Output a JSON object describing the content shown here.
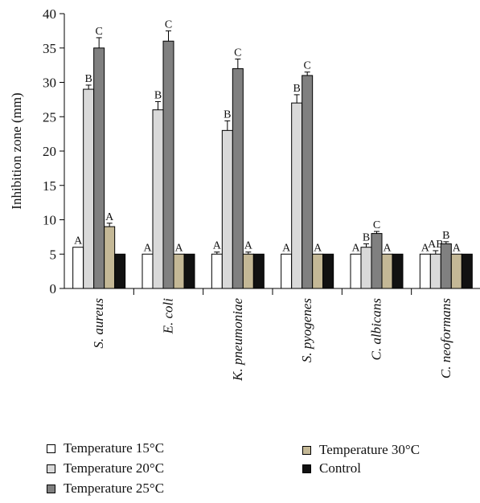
{
  "chart_data": {
    "type": "bar",
    "ylabel": "Inhibition zone (mm)",
    "xlabel": "",
    "ylim": [
      0,
      40
    ],
    "yticks": [
      0,
      5,
      10,
      15,
      20,
      25,
      30,
      35,
      40
    ],
    "categories": [
      "S. aureus",
      "E. coli",
      "K. pneumoniae",
      "S. pyogenes",
      "C. albicans",
      "C. neoformans"
    ],
    "series": [
      {
        "name": "Temperature 15°C",
        "color": "#ffffff",
        "values": [
          6,
          5,
          5,
          5,
          5,
          5
        ],
        "errors": [
          0,
          0,
          0.3,
          0,
          0,
          0
        ],
        "letters": [
          "A",
          "A",
          "A",
          "A",
          "A",
          "A"
        ]
      },
      {
        "name": "Temperature 20°C",
        "color": "#d9d9d9",
        "values": [
          29,
          26,
          23,
          27,
          6,
          5
        ],
        "errors": [
          0.6,
          1.2,
          1.4,
          1.2,
          0.5,
          0.5
        ],
        "letters": [
          "B",
          "B",
          "B",
          "B",
          "B",
          "AB"
        ]
      },
      {
        "name": "Temperature 25°C",
        "color": "#808080",
        "values": [
          35,
          36,
          32,
          31,
          8,
          6.5
        ],
        "errors": [
          1.5,
          1.5,
          1.4,
          0.5,
          0.3,
          0.3
        ],
        "letters": [
          "C",
          "C",
          "C",
          "C",
          "C",
          "B"
        ]
      },
      {
        "name": "Temperature 30°C",
        "color": "#c4b896",
        "values": [
          9,
          5,
          5,
          5,
          5,
          5
        ],
        "errors": [
          0.5,
          0,
          0.3,
          0,
          0,
          0
        ],
        "letters": [
          "A",
          "A",
          "A",
          "A",
          "A",
          "A"
        ]
      },
      {
        "name": "Control",
        "color": "#111111",
        "values": [
          5,
          5,
          5,
          5,
          5,
          5
        ],
        "errors": [
          0,
          0,
          0,
          0,
          0,
          0
        ],
        "letters": [
          "",
          "",
          "",
          "",
          "",
          ""
        ]
      }
    ],
    "legend_placement": "bottom",
    "grid": false
  }
}
